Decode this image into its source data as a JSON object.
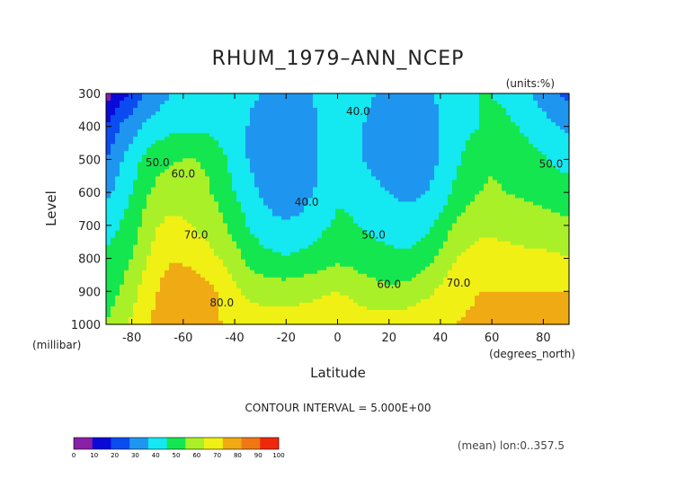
{
  "chart_data": {
    "type": "heatmap",
    "title": "RHUM_1979–ANN_NCEP",
    "units_label": "(units:%)",
    "xlabel": "Latitude",
    "xunits": "(degrees_north)",
    "ylabel": "Level",
    "yunits": "(millibar)",
    "xlim": [
      -90,
      90
    ],
    "ylim": [
      1000,
      300
    ],
    "x_ticks": [
      -80,
      -60,
      -40,
      -20,
      0,
      20,
      40,
      60,
      80
    ],
    "y_ticks": [
      300,
      400,
      500,
      600,
      700,
      800,
      900,
      1000
    ],
    "contour_interval_text": "CONTOUR INTERVAL = 5.000E+00",
    "footer_text": "(mean) lon:0..357.5",
    "contour_labels": [
      {
        "text": "40.0",
        "lat": 8,
        "lev": 365
      },
      {
        "text": "50.0",
        "lat": -70,
        "lev": 520
      },
      {
        "text": "60.0",
        "lat": -60,
        "lev": 555
      },
      {
        "text": "40.0",
        "lat": -12,
        "lev": 640
      },
      {
        "text": "50.0",
        "lat": 83,
        "lev": 525
      },
      {
        "text": "70.0",
        "lat": -55,
        "lev": 740
      },
      {
        "text": "50.0",
        "lat": 14,
        "lev": 740
      },
      {
        "text": "80.0",
        "lat": -45,
        "lev": 945
      },
      {
        "text": "60.0",
        "lat": 20,
        "lev": 890
      },
      {
        "text": "70.0",
        "lat": 47,
        "lev": 885
      }
    ],
    "colorbar": {
      "ticks": [
        0,
        10,
        20,
        30,
        40,
        50,
        60,
        70,
        80,
        90,
        100
      ],
      "colors": [
        "#8a1fa8",
        "#0a0ad8",
        "#0a4cf0",
        "#1e96f0",
        "#14e8f0",
        "#14e650",
        "#aaf028",
        "#f0f014",
        "#f0aa14",
        "#f07814",
        "#f0280a"
      ]
    },
    "profiles": {
      "lats": [
        -90,
        -85,
        -80,
        -75,
        -70,
        -65,
        -60,
        -55,
        -50,
        -45,
        -40,
        -35,
        -30,
        -25,
        -20,
        -15,
        -10,
        -5,
        0,
        5,
        10,
        15,
        20,
        25,
        30,
        35,
        40,
        45,
        50,
        55,
        60,
        65,
        70,
        75,
        80,
        85,
        90
      ],
      "levels": [
        300,
        400,
        500,
        600,
        700,
        800,
        900,
        1000
      ],
      "rows": [
        [
          5,
          15,
          22,
          30,
          35,
          40,
          42,
          44,
          45,
          45,
          45,
          42,
          40,
          37,
          35,
          36,
          40,
          44,
          44,
          44,
          42,
          40,
          38,
          36,
          35,
          38,
          42,
          45,
          47,
          50,
          50,
          48,
          45,
          40,
          35,
          30,
          28
        ],
        [
          20,
          30,
          35,
          42,
          45,
          47,
          48,
          48,
          48,
          46,
          44,
          40,
          36,
          33,
          32,
          33,
          37,
          43,
          45,
          43,
          40,
          37,
          35,
          33,
          32,
          35,
          40,
          45,
          48,
          50,
          52,
          52,
          50,
          47,
          44,
          40,
          38
        ],
        [
          30,
          38,
          45,
          52,
          56,
          59,
          60,
          60,
          58,
          52,
          46,
          40,
          36,
          33,
          32,
          33,
          37,
          43,
          46,
          44,
          40,
          37,
          35,
          33,
          33,
          36,
          41,
          47,
          52,
          56,
          58,
          57,
          55,
          53,
          51,
          48,
          46
        ],
        [
          38,
          43,
          50,
          58,
          63,
          66,
          66,
          64,
          61,
          56,
          50,
          44,
          39,
          36,
          35,
          36,
          39,
          44,
          48,
          48,
          45,
          42,
          40,
          38,
          38,
          40,
          44,
          51,
          56,
          60,
          62,
          60,
          59,
          58,
          57,
          55,
          55
        ],
        [
          45,
          50,
          55,
          63,
          70,
          72,
          71,
          69,
          66,
          62,
          56,
          50,
          45,
          42,
          41,
          42,
          45,
          49,
          52,
          51,
          49,
          47,
          46,
          45,
          45,
          48,
          53,
          60,
          65,
          68,
          68,
          67,
          66,
          65,
          64,
          63,
          62
        ],
        [
          52,
          55,
          60,
          68,
          75,
          79,
          78,
          76,
          73,
          69,
          64,
          58,
          54,
          52,
          51,
          52,
          54,
          56,
          58,
          57,
          55,
          54,
          53,
          52,
          53,
          57,
          63,
          69,
          72,
          73,
          73,
          73,
          73,
          72,
          72,
          72,
          70
        ],
        [
          55,
          60,
          66,
          74,
          80,
          86,
          88,
          86,
          83,
          78,
          72,
          68,
          66,
          65,
          65,
          66,
          67,
          69,
          70,
          68,
          65,
          63,
          62,
          63,
          65,
          68,
          72,
          76,
          78,
          80,
          80,
          80,
          80,
          80,
          80,
          80,
          80
        ],
        [
          60,
          65,
          72,
          78,
          83,
          85,
          85,
          84,
          82,
          80,
          77,
          76,
          75,
          75,
          75,
          76,
          77,
          78,
          78,
          77,
          76,
          75,
          75,
          76,
          77,
          78,
          79,
          80,
          81,
          82,
          82,
          82,
          82,
          82,
          82,
          82,
          82
        ]
      ]
    }
  }
}
